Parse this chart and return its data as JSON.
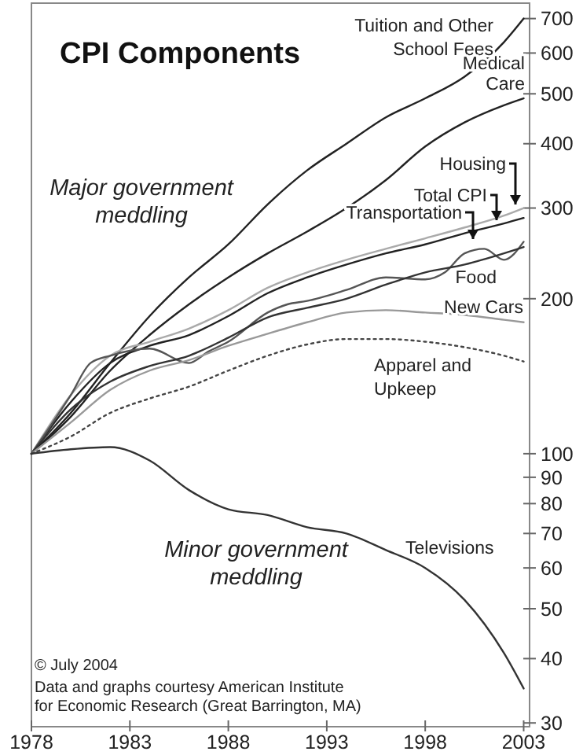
{
  "chart_data": {
    "type": "line",
    "title": "CPI Components",
    "log": true,
    "grid": false,
    "legend": false,
    "marker": "none",
    "xlim": [
      1978,
      2003.3
    ],
    "xticks": [
      1978,
      1983,
      1988,
      1993,
      1998,
      2003
    ],
    "ylim": [
      29.5,
      750
    ],
    "yticks": [
      30,
      40,
      50,
      60,
      70,
      80,
      90,
      100,
      200,
      300,
      400,
      500,
      600,
      700
    ],
    "series": [
      {
        "name": "Tuition and Other School Fees",
        "color": "#222222",
        "x": [
          1978,
          1980,
          1982,
          1984,
          1986,
          1988,
          1990,
          1992,
          1994,
          1996,
          1998,
          2000,
          2002,
          2003
        ],
        "values": [
          100,
          120,
          150,
          185,
          220,
          255,
          305,
          355,
          400,
          450,
          490,
          540,
          630,
          700
        ]
      },
      {
        "name": "Medical Care",
        "color": "#222222",
        "x": [
          1978,
          1980,
          1982,
          1984,
          1986,
          1988,
          1990,
          1992,
          1994,
          1996,
          1998,
          2000,
          2002,
          2003
        ],
        "values": [
          100,
          118,
          145,
          170,
          195,
          220,
          245,
          270,
          300,
          340,
          395,
          440,
          475,
          490
        ]
      },
      {
        "name": "Housing",
        "color": "#aaaaaa",
        "x": [
          1978,
          1980,
          1982,
          1984,
          1986,
          1988,
          1990,
          1992,
          1994,
          1996,
          1998,
          2000,
          2002,
          2003
        ],
        "values": [
          100,
          130,
          155,
          165,
          175,
          190,
          210,
          225,
          238,
          250,
          262,
          275,
          290,
          300
        ]
      },
      {
        "name": "Total CPI",
        "color": "#222222",
        "x": [
          1978,
          1980,
          1982,
          1984,
          1986,
          1988,
          1990,
          1992,
          1994,
          1996,
          1998,
          2000,
          2002,
          2003
        ],
        "values": [
          100,
          126,
          150,
          162,
          170,
          185,
          205,
          220,
          233,
          245,
          255,
          268,
          280,
          287
        ]
      },
      {
        "name": "Transportation",
        "color": "#555555",
        "x": [
          1978,
          1980,
          1981,
          1982,
          1984,
          1986,
          1987,
          1988,
          1990,
          1991,
          1992,
          1994,
          1996,
          1998,
          1999,
          2000,
          2001,
          2002,
          2003
        ],
        "values": [
          100,
          130,
          150,
          155,
          160,
          150,
          158,
          165,
          188,
          195,
          198,
          208,
          220,
          218,
          225,
          245,
          250,
          238,
          258
        ]
      },
      {
        "name": "Food",
        "color": "#333333",
        "x": [
          1978,
          1980,
          1982,
          1984,
          1986,
          1988,
          1990,
          1992,
          1994,
          1996,
          1998,
          2000,
          2002,
          2003
        ],
        "values": [
          100,
          122,
          138,
          148,
          155,
          168,
          184,
          192,
          200,
          213,
          225,
          233,
          245,
          252
        ]
      },
      {
        "name": "New Cars",
        "color": "#999999",
        "x": [
          1978,
          1980,
          1982,
          1984,
          1986,
          1988,
          1990,
          1992,
          1994,
          1996,
          1998,
          2000,
          2002,
          2003
        ],
        "values": [
          100,
          115,
          133,
          145,
          152,
          162,
          171,
          180,
          188,
          190,
          188,
          186,
          182,
          180
        ]
      },
      {
        "name": "Apparel and Upkeep",
        "color": "#444444",
        "line_style": "dotted",
        "x": [
          1978,
          1980,
          1982,
          1984,
          1986,
          1988,
          1990,
          1992,
          1994,
          1996,
          1998,
          2000,
          2002,
          2003
        ],
        "values": [
          100,
          108,
          120,
          128,
          135,
          145,
          155,
          163,
          167,
          167,
          165,
          161,
          155,
          151
        ]
      },
      {
        "name": "Televisions",
        "color": "#333333",
        "x": [
          1978,
          1980,
          1982,
          1984,
          1986,
          1988,
          1990,
          1992,
          1994,
          1996,
          1998,
          2000,
          2002,
          2003
        ],
        "values": [
          100,
          102,
          103,
          97,
          85,
          78,
          76,
          72,
          70,
          65,
          60,
          52,
          41,
          35
        ]
      }
    ],
    "annotations": [
      "Major government meddling",
      "Minor government meddling",
      "© July 2004",
      "Data and graphs courtesy American Institute for Economic Research (Great Barrington, MA)"
    ]
  }
}
